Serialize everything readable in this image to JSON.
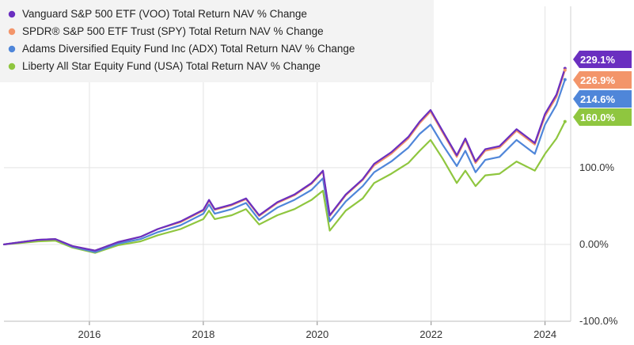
{
  "chart_data": {
    "type": "line",
    "title": "",
    "xlabel": "",
    "ylabel": "",
    "xlim": [
      2014.5,
      2024.45
    ],
    "ylim": [
      -100,
      310
    ],
    "x_ticks": [
      {
        "value": 2016,
        "label": "2016"
      },
      {
        "value": 2018,
        "label": "2018"
      },
      {
        "value": 2020,
        "label": "2020"
      },
      {
        "value": 2022,
        "label": "2022"
      },
      {
        "value": 2024,
        "label": "2024"
      }
    ],
    "y_ticks": [
      {
        "value": 100,
        "label": "100.0%"
      },
      {
        "value": 0,
        "label": "0.00%"
      },
      {
        "value": -100,
        "label": "-100.0%"
      }
    ],
    "grid": true,
    "legend_position": "top-left",
    "series": [
      {
        "name": "Vanguard S&P 500 ETF (VOO) Total Return NAV % Change",
        "color": "#6a2fc0",
        "end_label": "229.1%",
        "points": [
          [
            2014.5,
            0
          ],
          [
            2014.8,
            3
          ],
          [
            2015.1,
            6
          ],
          [
            2015.4,
            7
          ],
          [
            2015.7,
            -2
          ],
          [
            2016.1,
            -8
          ],
          [
            2016.5,
            3
          ],
          [
            2016.9,
            10
          ],
          [
            2017.2,
            20
          ],
          [
            2017.6,
            30
          ],
          [
            2018.0,
            45
          ],
          [
            2018.1,
            58
          ],
          [
            2018.2,
            46
          ],
          [
            2018.5,
            52
          ],
          [
            2018.75,
            60
          ],
          [
            2018.98,
            38
          ],
          [
            2019.3,
            55
          ],
          [
            2019.6,
            65
          ],
          [
            2019.9,
            80
          ],
          [
            2020.1,
            96
          ],
          [
            2020.22,
            38
          ],
          [
            2020.5,
            65
          ],
          [
            2020.8,
            85
          ],
          [
            2021.0,
            105
          ],
          [
            2021.3,
            120
          ],
          [
            2021.6,
            140
          ],
          [
            2021.8,
            160
          ],
          [
            2021.99,
            175
          ],
          [
            2022.2,
            148
          ],
          [
            2022.45,
            116
          ],
          [
            2022.6,
            138
          ],
          [
            2022.78,
            108
          ],
          [
            2022.95,
            124
          ],
          [
            2023.2,
            128
          ],
          [
            2023.5,
            150
          ],
          [
            2023.82,
            132
          ],
          [
            2024.0,
            170
          ],
          [
            2024.2,
            195
          ],
          [
            2024.35,
            229.1
          ]
        ]
      },
      {
        "name": "SPDR® S&P 500 ETF Trust (SPY) Total Return NAV % Change",
        "color": "#f3956a",
        "end_label": "226.9%",
        "points": [
          [
            2014.5,
            0
          ],
          [
            2014.8,
            3
          ],
          [
            2015.1,
            6
          ],
          [
            2015.4,
            7
          ],
          [
            2015.7,
            -2
          ],
          [
            2016.1,
            -8
          ],
          [
            2016.5,
            3
          ],
          [
            2016.9,
            10
          ],
          [
            2017.2,
            20
          ],
          [
            2017.6,
            29
          ],
          [
            2018.0,
            44
          ],
          [
            2018.1,
            57
          ],
          [
            2018.2,
            45
          ],
          [
            2018.5,
            51
          ],
          [
            2018.75,
            59
          ],
          [
            2018.98,
            37
          ],
          [
            2019.3,
            54
          ],
          [
            2019.6,
            64
          ],
          [
            2019.9,
            79
          ],
          [
            2020.1,
            95
          ],
          [
            2020.22,
            37
          ],
          [
            2020.5,
            64
          ],
          [
            2020.8,
            84
          ],
          [
            2021.0,
            103
          ],
          [
            2021.3,
            118
          ],
          [
            2021.6,
            138
          ],
          [
            2021.8,
            158
          ],
          [
            2021.99,
            173
          ],
          [
            2022.2,
            146
          ],
          [
            2022.45,
            114
          ],
          [
            2022.6,
            136
          ],
          [
            2022.78,
            106
          ],
          [
            2022.95,
            122
          ],
          [
            2023.2,
            126
          ],
          [
            2023.5,
            148
          ],
          [
            2023.82,
            130
          ],
          [
            2024.0,
            167
          ],
          [
            2024.2,
            192
          ],
          [
            2024.35,
            226.9
          ]
        ]
      },
      {
        "name": "Adams Diversified Equity Fund Inc (ADX) Total Return NAV % Change",
        "color": "#4f86d9",
        "end_label": "214.6%",
        "points": [
          [
            2014.5,
            0
          ],
          [
            2014.8,
            3
          ],
          [
            2015.1,
            6
          ],
          [
            2015.4,
            7
          ],
          [
            2015.7,
            -3
          ],
          [
            2016.1,
            -10
          ],
          [
            2016.5,
            1
          ],
          [
            2016.9,
            7
          ],
          [
            2017.2,
            16
          ],
          [
            2017.6,
            25
          ],
          [
            2018.0,
            40
          ],
          [
            2018.1,
            52
          ],
          [
            2018.2,
            40
          ],
          [
            2018.5,
            46
          ],
          [
            2018.75,
            54
          ],
          [
            2018.98,
            32
          ],
          [
            2019.3,
            48
          ],
          [
            2019.6,
            58
          ],
          [
            2019.9,
            71
          ],
          [
            2020.1,
            86
          ],
          [
            2020.22,
            30
          ],
          [
            2020.5,
            56
          ],
          [
            2020.8,
            76
          ],
          [
            2021.0,
            94
          ],
          [
            2021.3,
            108
          ],
          [
            2021.6,
            126
          ],
          [
            2021.8,
            144
          ],
          [
            2021.99,
            156
          ],
          [
            2022.2,
            130
          ],
          [
            2022.45,
            102
          ],
          [
            2022.6,
            122
          ],
          [
            2022.78,
            94
          ],
          [
            2022.95,
            110
          ],
          [
            2023.2,
            114
          ],
          [
            2023.5,
            136
          ],
          [
            2023.82,
            118
          ],
          [
            2024.0,
            156
          ],
          [
            2024.2,
            182
          ],
          [
            2024.35,
            214.6
          ]
        ]
      },
      {
        "name": "Liberty All Star Equity Fund (USA) Total Return NAV % Change",
        "color": "#8fc63f",
        "end_label": "160.0%",
        "points": [
          [
            2014.5,
            0
          ],
          [
            2014.8,
            2
          ],
          [
            2015.1,
            4
          ],
          [
            2015.4,
            5
          ],
          [
            2015.7,
            -4
          ],
          [
            2016.1,
            -11
          ],
          [
            2016.5,
            -1
          ],
          [
            2016.9,
            4
          ],
          [
            2017.2,
            12
          ],
          [
            2017.6,
            20
          ],
          [
            2018.0,
            33
          ],
          [
            2018.1,
            44
          ],
          [
            2018.2,
            33
          ],
          [
            2018.5,
            38
          ],
          [
            2018.75,
            46
          ],
          [
            2018.98,
            26
          ],
          [
            2019.3,
            38
          ],
          [
            2019.6,
            46
          ],
          [
            2019.9,
            58
          ],
          [
            2020.1,
            70
          ],
          [
            2020.22,
            18
          ],
          [
            2020.5,
            44
          ],
          [
            2020.8,
            60
          ],
          [
            2021.0,
            80
          ],
          [
            2021.3,
            92
          ],
          [
            2021.6,
            106
          ],
          [
            2021.8,
            122
          ],
          [
            2021.99,
            136
          ],
          [
            2022.2,
            112
          ],
          [
            2022.45,
            80
          ],
          [
            2022.6,
            96
          ],
          [
            2022.78,
            76
          ],
          [
            2022.95,
            90
          ],
          [
            2023.2,
            92
          ],
          [
            2023.5,
            108
          ],
          [
            2023.82,
            96
          ],
          [
            2024.0,
            118
          ],
          [
            2024.2,
            138
          ],
          [
            2024.35,
            160.0
          ]
        ]
      }
    ]
  }
}
